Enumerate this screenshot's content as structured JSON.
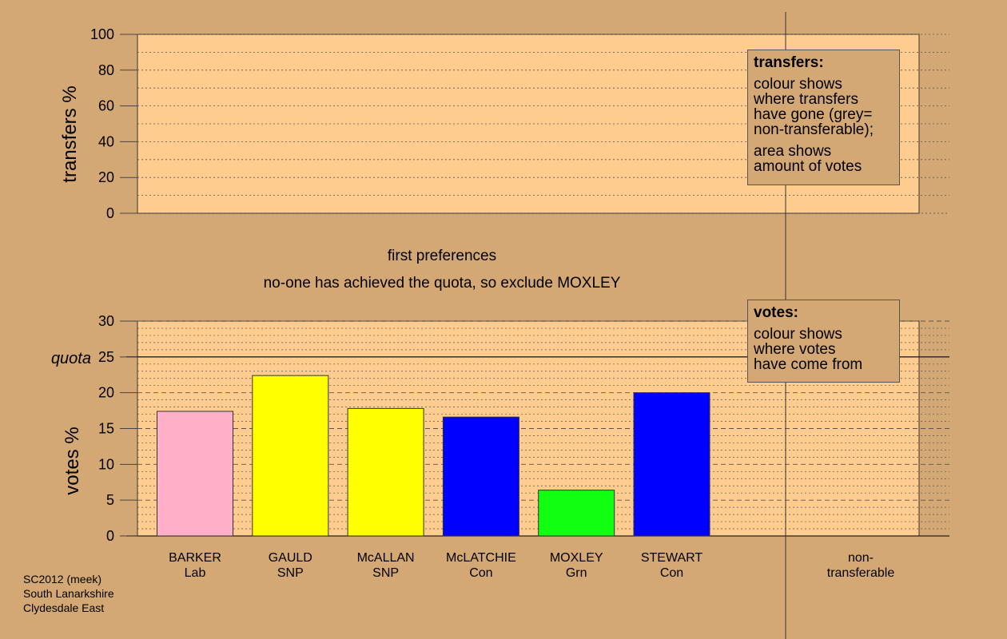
{
  "top_chart": {
    "ylabel": "transfers %",
    "ylim": [
      0,
      100
    ],
    "yticks": [
      "0",
      "20",
      "40",
      "60",
      "80",
      "100"
    ],
    "legend": {
      "title": "transfers:",
      "lines1": [
        "colour shows",
        "where transfers",
        "have gone (grey=",
        "non-transferable);"
      ],
      "lines2": [
        "area shows",
        "amount of votes"
      ]
    }
  },
  "messages": {
    "stage": "first preferences",
    "action": "no-one has achieved the quota, so exclude MOXLEY"
  },
  "chart_data": {
    "type": "bar",
    "ylabel": "votes %",
    "ylim": [
      0,
      30
    ],
    "yticks": [
      "0",
      "5",
      "10",
      "15",
      "20",
      "25",
      "30"
    ],
    "quota": {
      "label": "quota",
      "value": 25
    },
    "categories": [
      {
        "name": "BARKER",
        "party": "Lab",
        "value": 17.4,
        "color": "#ffb0c8"
      },
      {
        "name": "GAULD",
        "party": "SNP",
        "value": 22.4,
        "color": "#ffff00"
      },
      {
        "name": "McALLAN",
        "party": "SNP",
        "value": 17.8,
        "color": "#ffff00"
      },
      {
        "name": "McLATCHIE",
        "party": "Con",
        "value": 16.6,
        "color": "#0000ff"
      },
      {
        "name": "MOXLEY",
        "party": "Grn",
        "value": 6.4,
        "color": "#11ff11"
      },
      {
        "name": "STEWART",
        "party": "Con",
        "value": 20.0,
        "color": "#0000ff"
      }
    ],
    "nontransferable": {
      "line1": "non-",
      "line2": "transferable"
    },
    "legend": {
      "title": "votes:",
      "lines": [
        "colour shows",
        "where votes",
        "have come from"
      ]
    }
  },
  "source": {
    "line1": "SC2012 (meek)",
    "line2": "South Lanarkshire",
    "line3": "Clydesdale East"
  },
  "colors": {
    "background": "#d4a874",
    "plot_area": "#ffcc8f"
  }
}
